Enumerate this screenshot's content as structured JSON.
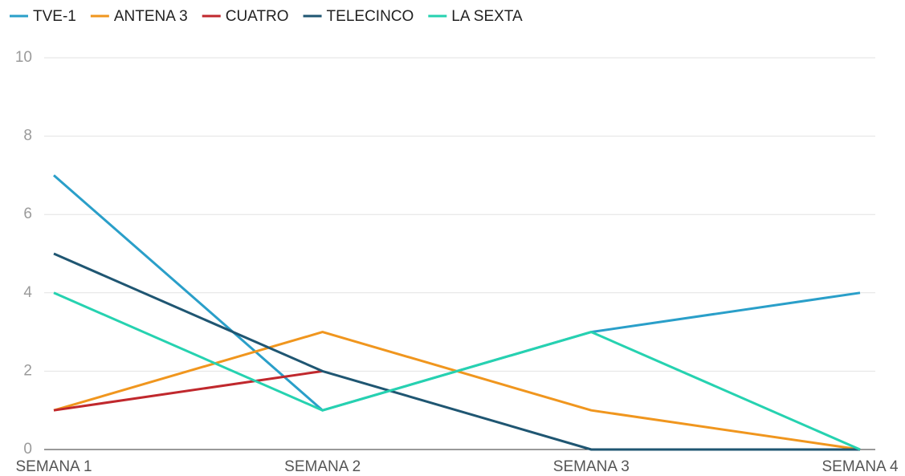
{
  "chart_data": {
    "type": "line",
    "categories": [
      "SEMANA 1",
      "SEMANA 2",
      "SEMANA 3",
      "SEMANA 4"
    ],
    "series": [
      {
        "name": "TVE-1",
        "color": "#2a9fc9",
        "values": [
          7,
          1,
          3,
          4
        ]
      },
      {
        "name": "ANTENA 3",
        "color": "#f0961e",
        "values": [
          1,
          3,
          1,
          0
        ]
      },
      {
        "name": "CUATRO",
        "color": "#c0282d",
        "values": [
          1,
          2,
          null,
          null
        ]
      },
      {
        "name": "TELECINCO",
        "color": "#1f5672",
        "values": [
          5,
          2,
          0,
          0
        ]
      },
      {
        "name": "LA SEXTA",
        "color": "#26d2b0",
        "values": [
          4,
          1,
          3,
          0
        ]
      }
    ],
    "ylim": [
      0,
      10
    ],
    "yticks": [
      0,
      2,
      4,
      6,
      8,
      10
    ],
    "grid": true,
    "legend": "top"
  }
}
